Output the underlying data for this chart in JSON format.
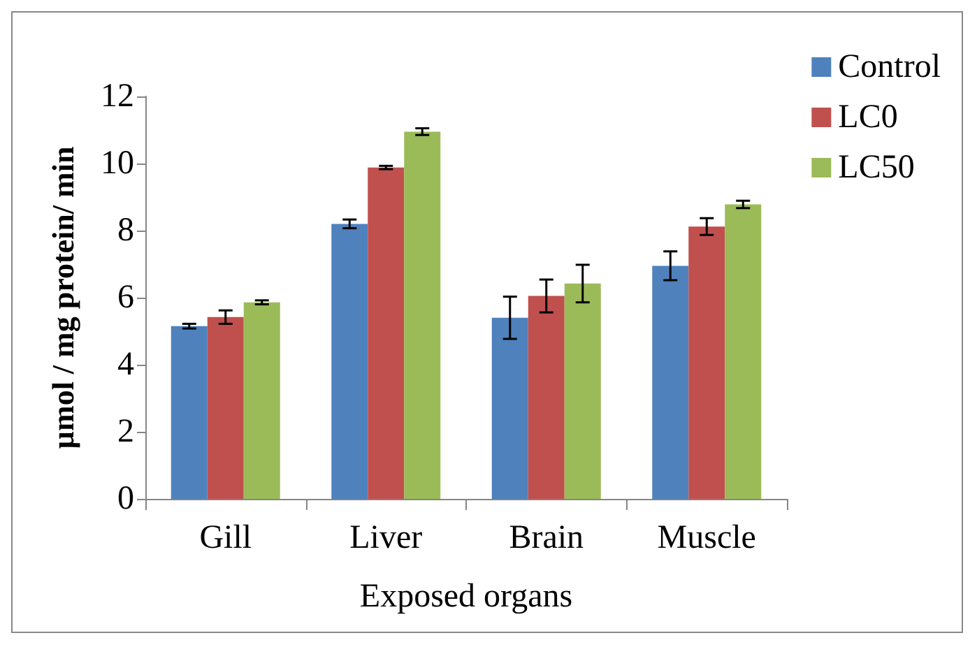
{
  "chart_data": {
    "type": "bar",
    "xlabel": "Exposed organs",
    "ylabel": "µmol / mg protein/ min",
    "categories": [
      "Gill",
      "Liver",
      "Brain",
      "Muscle"
    ],
    "series": [
      {
        "name": "Control",
        "color": "#4f81bd",
        "values": [
          5.15,
          8.2,
          5.4,
          6.95
        ],
        "errors": [
          0.07,
          0.13,
          0.63,
          0.43
        ]
      },
      {
        "name": "LC0",
        "color": "#c0504d",
        "values": [
          5.42,
          9.88,
          6.05,
          8.12
        ],
        "errors": [
          0.2,
          0.05,
          0.49,
          0.25
        ]
      },
      {
        "name": "LC50",
        "color": "#9bbb59",
        "values": [
          5.86,
          10.95,
          6.42,
          8.78
        ],
        "errors": [
          0.06,
          0.1,
          0.56,
          0.11
        ]
      }
    ],
    "ylim": [
      0,
      12
    ],
    "yticks": [
      0,
      2,
      4,
      6,
      8,
      10,
      12
    ],
    "grid": false,
    "legend": "top right"
  }
}
